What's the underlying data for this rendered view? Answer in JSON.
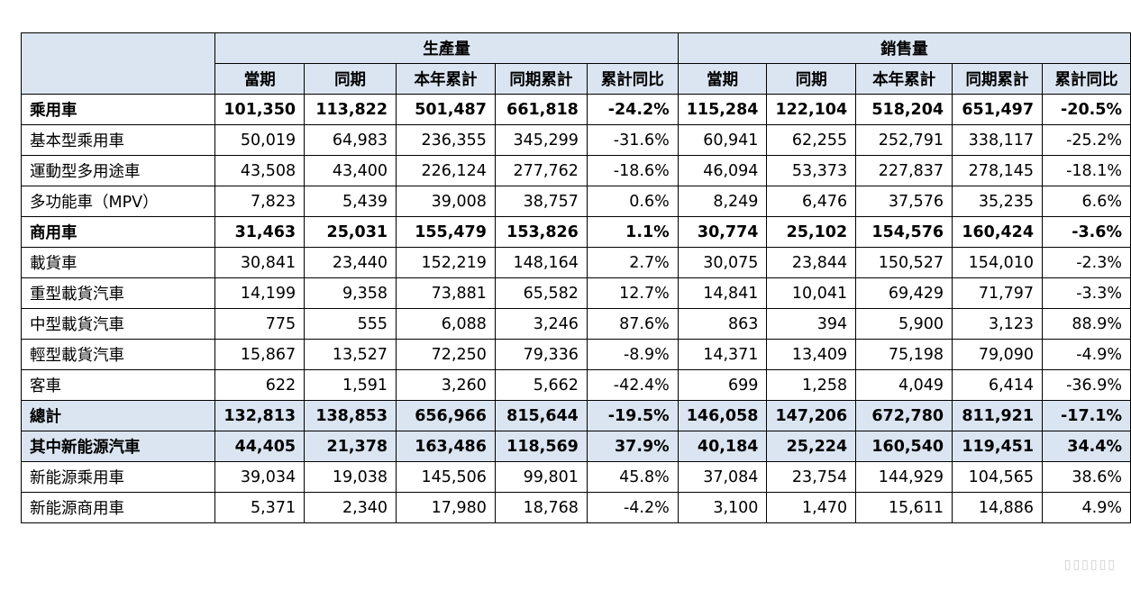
{
  "header": {
    "production": "生產量",
    "sales": "銷售量",
    "columns": [
      "當期",
      "同期",
      "本年累計",
      "同期累計",
      "累計同比",
      "當期",
      "同期",
      "本年累計",
      "同期累計",
      "累計同比"
    ]
  },
  "rows": [
    {
      "label": "乘用車",
      "values": [
        "101,350",
        "113,822",
        "501,487",
        "661,818",
        "-24.2%",
        "115,284",
        "122,104",
        "518,204",
        "651,497",
        "-20.5%"
      ]
    },
    {
      "label": "基本型乘用車",
      "values": [
        "50,019",
        "64,983",
        "236,355",
        "345,299",
        "-31.6%",
        "60,941",
        "62,255",
        "252,791",
        "338,117",
        "-25.2%"
      ]
    },
    {
      "label": "運動型多用途車",
      "values": [
        "43,508",
        "43,400",
        "226,124",
        "277,762",
        "-18.6%",
        "46,094",
        "53,373",
        "227,837",
        "278,145",
        "-18.1%"
      ]
    },
    {
      "label": "多功能車（MPV）",
      "values": [
        "7,823",
        "5,439",
        "39,008",
        "38,757",
        "0.6%",
        "8,249",
        "6,476",
        "37,576",
        "35,235",
        "6.6%"
      ]
    },
    {
      "label": "商用車",
      "values": [
        "31,463",
        "25,031",
        "155,479",
        "153,826",
        "1.1%",
        "30,774",
        "25,102",
        "154,576",
        "160,424",
        "-3.6%"
      ]
    },
    {
      "label": "載貨車",
      "values": [
        "30,841",
        "23,440",
        "152,219",
        "148,164",
        "2.7%",
        "30,075",
        "23,844",
        "150,527",
        "154,010",
        "-2.3%"
      ]
    },
    {
      "label": "重型載貨汽車",
      "values": [
        "14,199",
        "9,358",
        "73,881",
        "65,582",
        "12.7%",
        "14,841",
        "10,041",
        "69,429",
        "71,797",
        "-3.3%"
      ]
    },
    {
      "label": "中型載貨汽車",
      "values": [
        "775",
        "555",
        "6,088",
        "3,246",
        "87.6%",
        "863",
        "394",
        "5,900",
        "3,123",
        "88.9%"
      ]
    },
    {
      "label": "輕型載貨汽車",
      "values": [
        "15,867",
        "13,527",
        "72,250",
        "79,336",
        "-8.9%",
        "14,371",
        "13,409",
        "75,198",
        "79,090",
        "-4.9%"
      ]
    },
    {
      "label": "客車",
      "values": [
        "622",
        "1,591",
        "3,260",
        "5,662",
        "-42.4%",
        "699",
        "1,258",
        "4,049",
        "6,414",
        "-36.9%"
      ]
    },
    {
      "label": "總計",
      "values": [
        "132,813",
        "138,853",
        "656,966",
        "815,644",
        "-19.5%",
        "146,058",
        "147,206",
        "672,780",
        "811,921",
        "-17.1%"
      ]
    },
    {
      "label": "其中新能源汽車",
      "values": [
        "44,405",
        "21,378",
        "163,486",
        "118,569",
        "37.9%",
        "40,184",
        "25,224",
        "160,540",
        "119,451",
        "34.4%"
      ]
    },
    {
      "label": "新能源乘用車",
      "values": [
        "39,034",
        "19,038",
        "145,506",
        "99,801",
        "45.8%",
        "37,084",
        "23,754",
        "144,929",
        "104,565",
        "38.6%"
      ]
    },
    {
      "label": "新能源商用車",
      "values": [
        "5,371",
        "2,340",
        "17,980",
        "18,768",
        "-4.2%",
        "3,100",
        "1,470",
        "15,611",
        "14,886",
        "4.9%"
      ]
    }
  ],
  "colors": {
    "header_bg": "#dbe5f1",
    "border": "#000000"
  }
}
